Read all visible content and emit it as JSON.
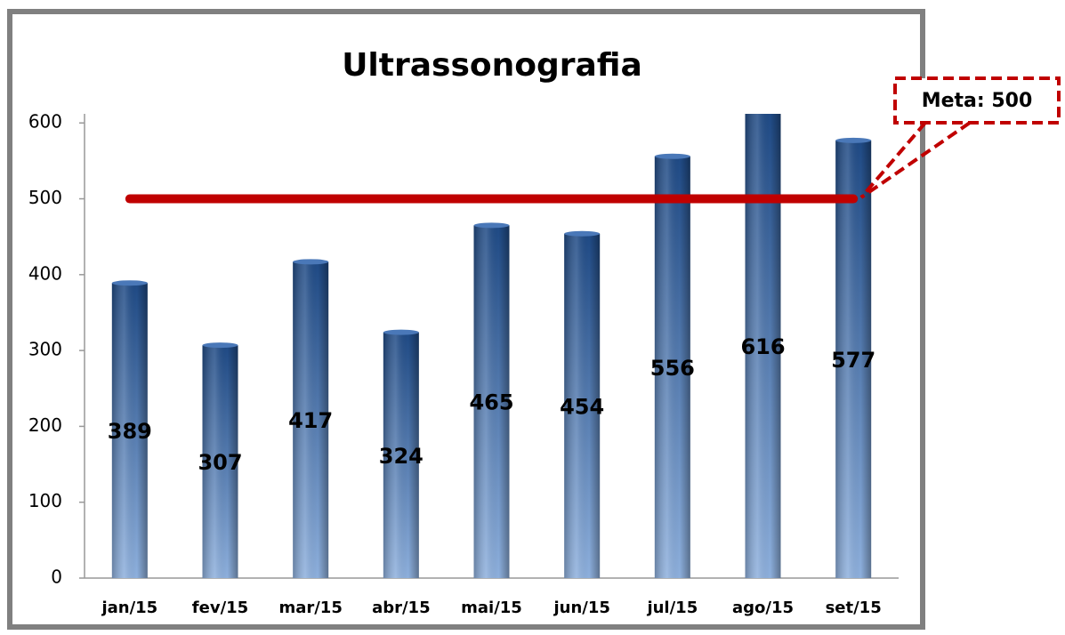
{
  "chart_data": {
    "type": "bar",
    "title": "Ultrassonografia",
    "categories": [
      "jan/15",
      "fev/15",
      "mar/15",
      "abr/15",
      "mai/15",
      "jun/15",
      "jul/15",
      "ago/15",
      "set/15"
    ],
    "values": [
      389,
      307,
      417,
      324,
      465,
      454,
      556,
      616,
      577
    ],
    "color": "#2e5d9e",
    "ylim": [
      0,
      612
    ],
    "yticks": [
      0,
      100,
      200,
      300,
      400,
      500,
      600
    ],
    "target": 500,
    "target_color": "#c00000",
    "annotation": "Meta: 500"
  }
}
